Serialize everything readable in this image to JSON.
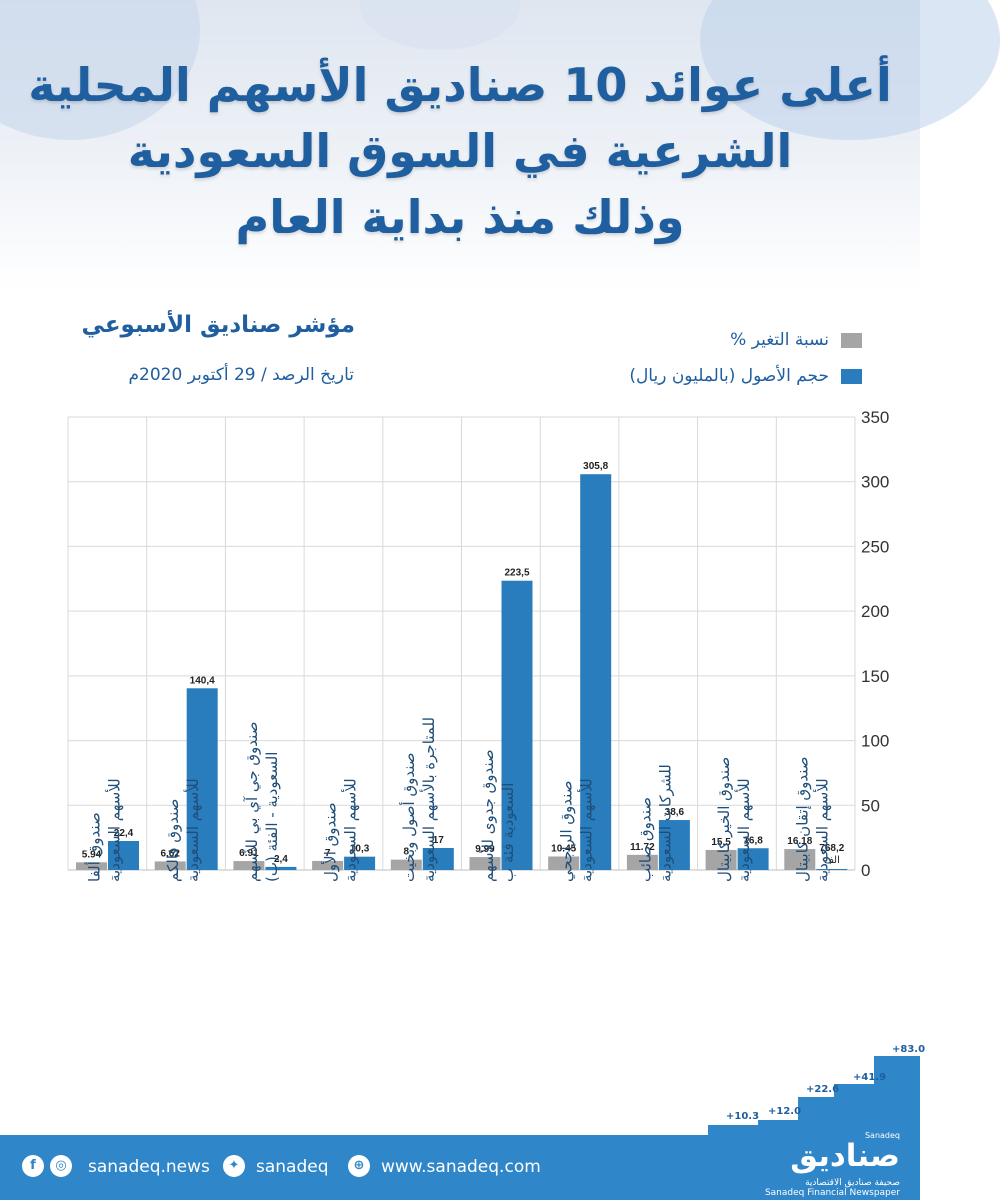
{
  "header": {
    "title_lines": [
      "أعلى عوائد 10 صناديق الأسهم المحلية",
      "الشرعية في السوق السعودية",
      "وذلك منذ بداية العام"
    ],
    "subtitle": "مؤشر صناديق الأسبوعي",
    "date": "تاريخ الرصد / 29 أكتوبر 2020م"
  },
  "legend": {
    "change_label": "نسبة التغير %",
    "assets_label": "حجم الأصول (بالمليون ريال)"
  },
  "colors": {
    "assets": "#2a7dbd",
    "change": "#a5a5a5",
    "title": "#1f5fa0",
    "footer": "#2f86c8"
  },
  "chart_data": {
    "type": "bar",
    "categories": [
      "صندوق ألفا للأسهم السعودية",
      "صندوق فالكم للأسهم السعودية",
      "صندوق جي آي بي للأسهم السعودية - الفئة (ب)",
      "صندوق الأول للأسهم السعودية",
      "صندوق أصول وبخيت للمتاجرة بالأسهم السعودية",
      "صندوق جدوى للأسهم السعودية فئة ب",
      "صندوق الراجحي للأسهم السعودية",
      "صندوق صائب للشركات السعودية",
      "صندوق الخير كابيتال للأسهم السعودية",
      "صندوق إتقان كابيتال للأسهم السعودية"
    ],
    "series": [
      {
        "name": "نسبة التغير %",
        "values": [
          5.94,
          6.62,
          6.91,
          7,
          8,
          9.99,
          10.45,
          11.72,
          15.5,
          16.18
        ],
        "labels": [
          "5.94",
          "6.62",
          "6.91",
          "7",
          "8",
          "9.99",
          "10.45",
          "11.72",
          "15.5",
          "16.18"
        ]
      },
      {
        "name": "حجم الأصول (بالمليون ريال)",
        "values": [
          22.4,
          140.4,
          2.4,
          10.3,
          17,
          223.5,
          305.8,
          38.6,
          16.8,
          0.7682
        ],
        "labels": [
          "22,4",
          "140,4",
          "2,4",
          "10,3",
          "17",
          "223,5",
          "305,8",
          "38,6",
          "16,8",
          "768,2"
        ]
      }
    ],
    "extra_label": "الف",
    "yticks": [
      "0",
      "50",
      "100",
      "150",
      "200",
      "250",
      "300",
      "350"
    ],
    "ylim": [
      0,
      350
    ],
    "grid": true,
    "legend_position": "top-right"
  },
  "decor": {
    "staircase_labels": [
      "+10.3",
      "+12.0",
      "+22.6",
      "+41.9",
      "+83.0"
    ]
  },
  "footer": {
    "site": "www.sanadeq.com",
    "twitter": "sanadeq",
    "social": "sanadeq.news",
    "logo": "صناديق",
    "logo_tag": "Sanadeq",
    "logo_sub_ar": "صحيفة صناديق الاقتصادية",
    "logo_sub_en": "Sanadeq Financial Newspaper"
  }
}
